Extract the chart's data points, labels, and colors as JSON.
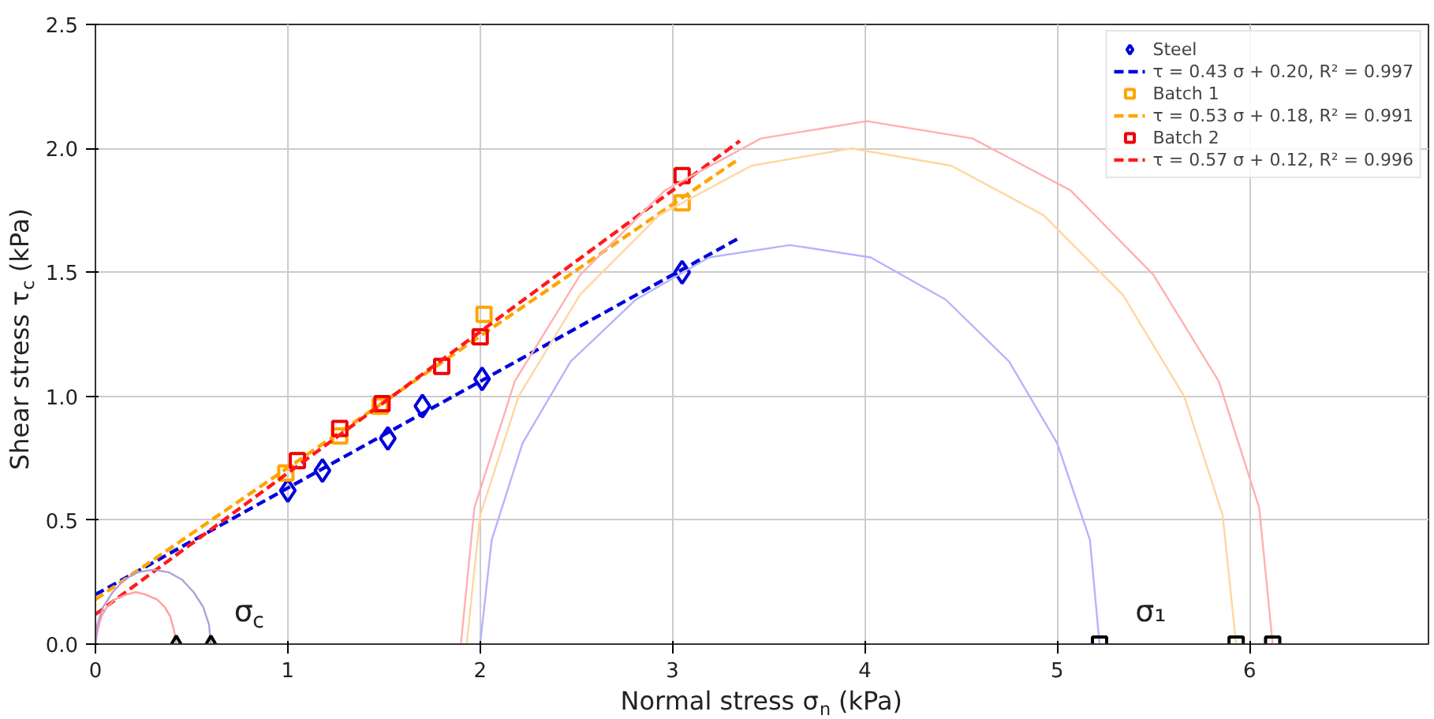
{
  "chart_data": {
    "type": "scatter",
    "xlabel": "Normal stress σ$_{n}$ (kPa)",
    "ylabel": "Shear stress τ$_{c}$ (kPa)",
    "xlim": [
      0,
      6.93
    ],
    "ylim": [
      0,
      2.5
    ],
    "xticks": [
      0,
      1,
      2,
      3,
      4,
      5,
      6
    ],
    "yticks": [
      {
        "value": 0,
        "label": "0.0"
      },
      {
        "value": 0.5,
        "label": "0.5"
      },
      {
        "value": 1,
        "label": "1.0"
      },
      {
        "value": 1.5,
        "label": "1.5"
      },
      {
        "value": 2,
        "label": "2.0"
      },
      {
        "value": 2.5,
        "label": "2.5"
      }
    ],
    "grid": true,
    "legend": "top right",
    "series": [
      {
        "name": "Steel",
        "marker": "diamond",
        "color": "#0000dd",
        "x": [
          1.0,
          1.18,
          1.52,
          1.7,
          2.01,
          3.05
        ],
        "values": [
          0.62,
          0.7,
          0.83,
          0.96,
          1.07,
          1.5
        ]
      },
      {
        "name": "τ = 0.43 σ + 0.20, R² = 0.997",
        "type": "line",
        "line_style": "dashed",
        "color": "#0000dd",
        "x": [
          0,
          3.35
        ],
        "values": [
          0.2,
          1.64
        ]
      },
      {
        "name": "Batch 1",
        "marker": "square",
        "color": "#ffa500",
        "x": [
          0.99,
          1.27,
          1.48,
          2.02,
          3.05
        ],
        "values": [
          0.69,
          0.84,
          0.96,
          1.33,
          1.78
        ]
      },
      {
        "name": "τ = 0.53 σ + 0.18, R² = 0.991",
        "type": "line",
        "line_style": "dashed",
        "color": "#ffa500",
        "x": [
          0,
          3.35
        ],
        "values": [
          0.18,
          1.96
        ]
      },
      {
        "name": "Batch 2",
        "marker": "square",
        "color": "#ee0000",
        "x": [
          1.05,
          1.27,
          1.49,
          1.8,
          2.0,
          3.05
        ],
        "values": [
          0.74,
          0.87,
          0.97,
          1.12,
          1.24,
          1.89
        ]
      },
      {
        "name": "τ = 0.57 σ + 0.12, R² = 0.996",
        "type": "line",
        "line_style": "dashed",
        "color": "#ff1a1a",
        "x": [
          0,
          3.35
        ],
        "values": [
          0.12,
          2.03
        ]
      },
      {
        "type": "line",
        "line_style": "solid",
        "color": "#b4b4ff",
        "x": [
          5.22,
          5.17,
          5.0,
          4.75,
          4.42,
          4.03,
          3.61,
          3.19,
          2.81,
          2.47,
          2.22,
          2.06,
          2.0
        ],
        "values": [
          0,
          0.42,
          0.81,
          1.14,
          1.39,
          1.56,
          1.61,
          1.56,
          1.39,
          1.14,
          0.81,
          0.42,
          0
        ]
      },
      {
        "type": "line",
        "line_style": "solid",
        "color": "#ffd6a0",
        "x": [
          5.93,
          5.86,
          5.66,
          5.34,
          4.93,
          4.45,
          3.93,
          3.41,
          2.93,
          2.52,
          2.2,
          2.0,
          1.93
        ],
        "values": [
          0,
          0.52,
          1.0,
          1.41,
          1.73,
          1.93,
          2.0,
          1.93,
          1.73,
          1.41,
          1.0,
          0.52,
          0
        ]
      },
      {
        "type": "line",
        "line_style": "solid",
        "color": "#ffb0b0",
        "x": [
          6.12,
          6.05,
          5.84,
          5.5,
          5.07,
          4.56,
          4.01,
          3.46,
          2.96,
          2.52,
          2.18,
          1.97,
          1.9
        ],
        "values": [
          0,
          0.55,
          1.06,
          1.49,
          1.83,
          2.04,
          2.11,
          2.04,
          1.83,
          1.49,
          1.06,
          0.55,
          0
        ]
      },
      {
        "type": "line",
        "line_style": "solid",
        "color": "#ffa0a0",
        "x": [
          0.42,
          0.41,
          0.39,
          0.36,
          0.32,
          0.26,
          0.21,
          0.16,
          0.1,
          0.06,
          0.03,
          0.01,
          0
        ],
        "values": [
          0,
          0.05,
          0.11,
          0.15,
          0.18,
          0.2,
          0.21,
          0.2,
          0.18,
          0.15,
          0.11,
          0.05,
          0
        ]
      },
      {
        "type": "line",
        "line_style": "solid",
        "color": "#b0a0d8",
        "x": [
          0.6,
          0.59,
          0.56,
          0.51,
          0.45,
          0.38,
          0.3,
          0.22,
          0.15,
          0.09,
          0.04,
          0.01,
          0
        ],
        "values": [
          0,
          0.08,
          0.15,
          0.21,
          0.26,
          0.29,
          0.3,
          0.29,
          0.26,
          0.21,
          0.15,
          0.08,
          0
        ]
      },
      {
        "marker": "triangle",
        "color": "#000000",
        "x": [
          0.42,
          0.6
        ],
        "values": [
          0,
          0
        ]
      },
      {
        "marker": "square",
        "color": "#000000",
        "x": [
          5.22,
          5.93,
          6.12
        ],
        "values": [
          0,
          0,
          0
        ]
      }
    ],
    "annotations": [
      "σ$_{c}$",
      "σ₁"
    ]
  }
}
